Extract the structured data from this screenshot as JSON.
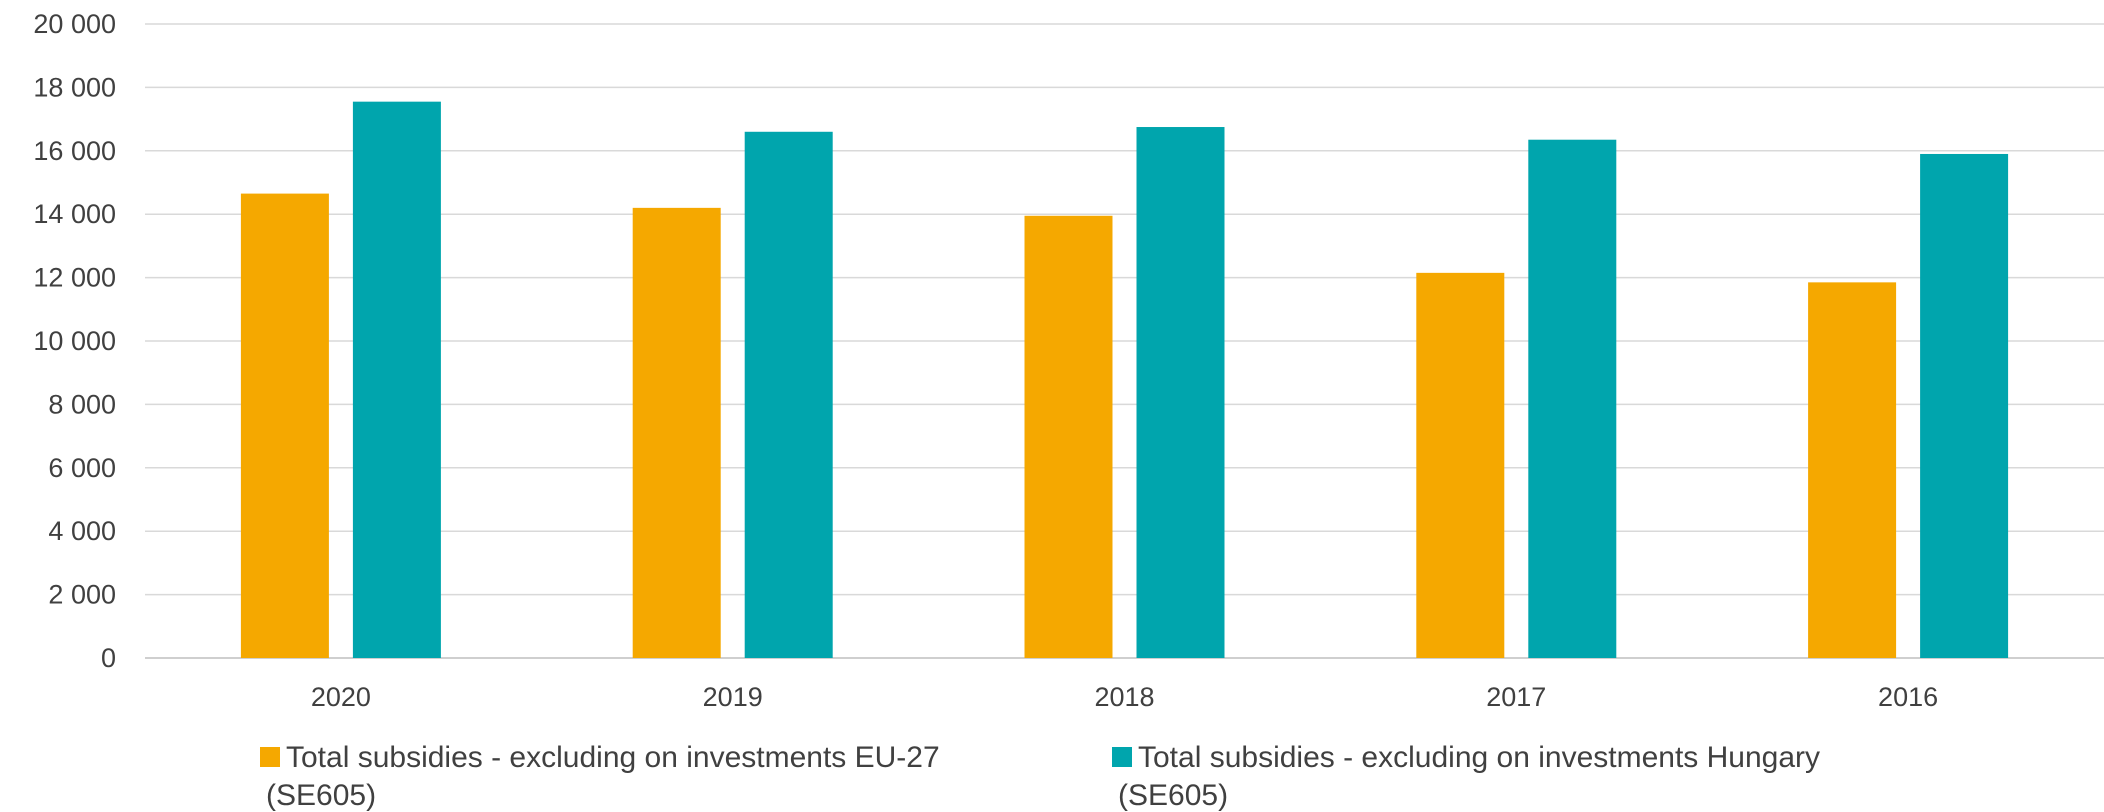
{
  "chart_data": {
    "type": "bar",
    "categories": [
      "2020",
      "2019",
      "2018",
      "2017",
      "2016"
    ],
    "series": [
      {
        "name_lines": [
          "Total subsidies - excluding on investments EU-27",
          "(SE605)"
        ],
        "color": "#F5A800",
        "values": [
          14650,
          14200,
          13950,
          12150,
          11850
        ]
      },
      {
        "name_lines": [
          "Total subsidies - excluding on investments Hungary",
          "(SE605)"
        ],
        "color": "#00A5AD",
        "values": [
          17550,
          16600,
          16750,
          16350,
          15900
        ]
      }
    ],
    "ylim": [
      0,
      20000
    ],
    "yticks": [
      "0",
      "2 000",
      "4 000",
      "6 000",
      "8 000",
      "10 000",
      "12 000",
      "14 000",
      "16 000",
      "18 000",
      "20 000"
    ],
    "grid": true,
    "legend_position": "bottom"
  }
}
